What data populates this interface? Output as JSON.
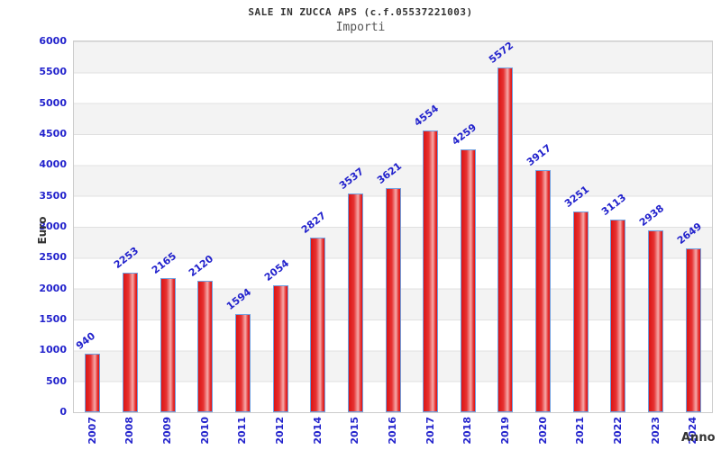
{
  "chart": {
    "title": "SALE IN ZUCCA APS (c.f.05537221003)",
    "subtitle": "Importi"
  },
  "chart_data": {
    "type": "bar",
    "title": "SALE IN ZUCCA APS (c.f.05537221003)",
    "subtitle": "Importi",
    "xlabel": "Anno",
    "ylabel": "Euro",
    "categories": [
      "2007",
      "2008",
      "2009",
      "2010",
      "2011",
      "2012",
      "2014",
      "2015",
      "2016",
      "2017",
      "2018",
      "2019",
      "2020",
      "2021",
      "2022",
      "2023",
      "2024"
    ],
    "values": [
      940,
      2253,
      2165,
      2120,
      1594,
      2054,
      2827,
      3537,
      3621,
      4554,
      4259,
      5572,
      3917,
      3251,
      3113,
      2938,
      2649
    ],
    "ylim": [
      0,
      6000
    ],
    "ytick_step": 500,
    "grid": true,
    "legend_position": "none",
    "band_fill": "alternating",
    "colors": {
      "tick_label": "#2222cc",
      "value_label": "#2222cc",
      "bar_edge_red": "#dc1414",
      "bar_mid_red": "#e63232",
      "bar_highlight": "#f5aaaa",
      "bar_border": "#6fa0e0",
      "band_gray": "#f3f3f3",
      "band_white": "#ffffff",
      "gridline": "#e0e0e0",
      "plot_border": "#cccccc",
      "title_color": "#333333",
      "subtitle_color": "#555555",
      "axis_title_color": "#333333"
    }
  }
}
